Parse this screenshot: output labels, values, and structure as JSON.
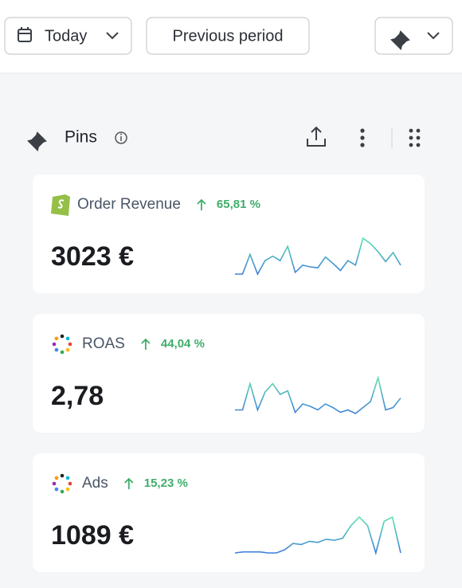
{
  "toolbar": {
    "date_button": "Today",
    "compare_button": "Previous period"
  },
  "section": {
    "title": "Pins"
  },
  "cards": [
    {
      "title": "Order Revenue",
      "change": "65,81 %",
      "value": "3023 €",
      "sparkline": [
        5,
        5,
        27,
        5,
        20,
        25,
        20,
        36,
        7,
        15,
        13,
        12,
        24,
        17,
        9,
        20,
        15,
        45,
        39,
        30,
        19,
        29,
        15
      ]
    },
    {
      "title": "ROAS",
      "change": "44,04 %",
      "value": "2,78",
      "sparkline": [
        5,
        5,
        27,
        5,
        20,
        27,
        18,
        21,
        3,
        10,
        8,
        5,
        10,
        7,
        3,
        5,
        2,
        7,
        12,
        32,
        5,
        7,
        15
      ]
    },
    {
      "title": "Ads",
      "change": "15,23 %",
      "value": "1089 €",
      "sparkline": [
        4,
        5,
        5,
        5,
        4,
        4,
        7,
        13,
        12,
        15,
        14,
        17,
        16,
        18,
        30,
        38,
        30,
        4,
        34,
        38,
        4
      ]
    }
  ]
}
